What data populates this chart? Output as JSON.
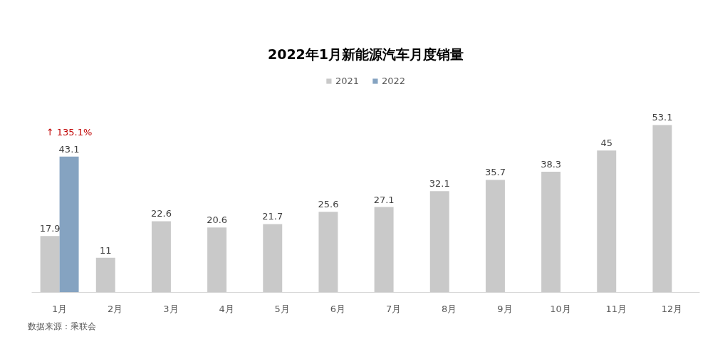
{
  "chart_data": {
    "type": "bar",
    "title": "2022年1月新能源汽车月度销量",
    "categories": [
      "1月",
      "2月",
      "3月",
      "4月",
      "5月",
      "6月",
      "7月",
      "8月",
      "9月",
      "10月",
      "11月",
      "12月"
    ],
    "series": [
      {
        "name": "2021",
        "color": "#c9c9c9",
        "values": [
          17.9,
          11,
          22.6,
          20.6,
          21.7,
          25.6,
          27.1,
          32.1,
          35.7,
          38.3,
          45,
          53.1
        ]
      },
      {
        "name": "2022",
        "color": "#85a3c1",
        "values": [
          43.1,
          null,
          null,
          null,
          null,
          null,
          null,
          null,
          null,
          null,
          null,
          null
        ]
      }
    ],
    "data_labels": true,
    "legend": "top",
    "annotations": [
      "↑ 135.1%",
      "数据来源：乘联会"
    ]
  }
}
